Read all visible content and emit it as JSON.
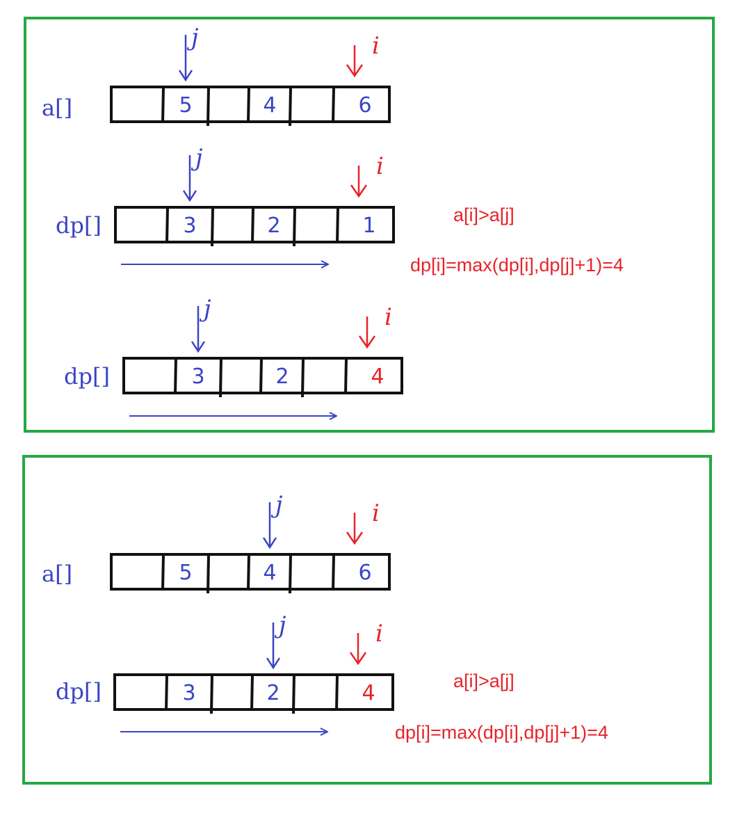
{
  "colors": {
    "frame": "#27a844",
    "blue_ink": "#3a44c4",
    "red_ink": "#e8232a",
    "cell_border": "#111111"
  },
  "panels": [
    {
      "rows": [
        {
          "label": "a[]",
          "cells": [
            "",
            "5",
            "",
            "4",
            "",
            "6"
          ],
          "cell_colors": [
            "blue",
            "blue",
            "blue",
            "blue",
            "blue",
            "blue"
          ],
          "j_pointer": "j",
          "i_pointer": "i",
          "j_cell": 1,
          "i_cell": 5,
          "has_arrow": false
        },
        {
          "label": "dp[]",
          "cells": [
            "",
            "3",
            "",
            "2",
            "",
            "1"
          ],
          "cell_colors": [
            "blue",
            "blue",
            "blue",
            "blue",
            "blue",
            "blue"
          ],
          "j_pointer": "j",
          "i_pointer": "i",
          "j_cell": 1,
          "i_cell": 5,
          "has_arrow": true
        },
        {
          "label": "dp[]",
          "cells": [
            "",
            "3",
            "",
            "2",
            "",
            "4"
          ],
          "cell_colors": [
            "blue",
            "blue",
            "blue",
            "blue",
            "blue",
            "red"
          ],
          "j_pointer": "j",
          "i_pointer": "i",
          "j_cell": 1,
          "i_cell": 5,
          "has_arrow": true
        }
      ],
      "condition": "a[i]>a[j]",
      "formula": "dp[i]=max(dp[i],dp[j]+1)=4"
    },
    {
      "rows": [
        {
          "label": "a[]",
          "cells": [
            "",
            "5",
            "",
            "4",
            "",
            "6"
          ],
          "cell_colors": [
            "blue",
            "blue",
            "blue",
            "blue",
            "blue",
            "blue"
          ],
          "j_pointer": "j",
          "i_pointer": "i",
          "j_cell": 3,
          "i_cell": 5,
          "has_arrow": false
        },
        {
          "label": "dp[]",
          "cells": [
            "",
            "3",
            "",
            "2",
            "",
            "4"
          ],
          "cell_colors": [
            "blue",
            "blue",
            "blue",
            "blue",
            "blue",
            "red"
          ],
          "j_pointer": "j",
          "i_pointer": "i",
          "j_cell": 3,
          "i_cell": 5,
          "has_arrow": true
        }
      ],
      "condition": "a[i]>a[j]",
      "formula": "dp[i]=max(dp[i],dp[j]+1)=4"
    }
  ]
}
